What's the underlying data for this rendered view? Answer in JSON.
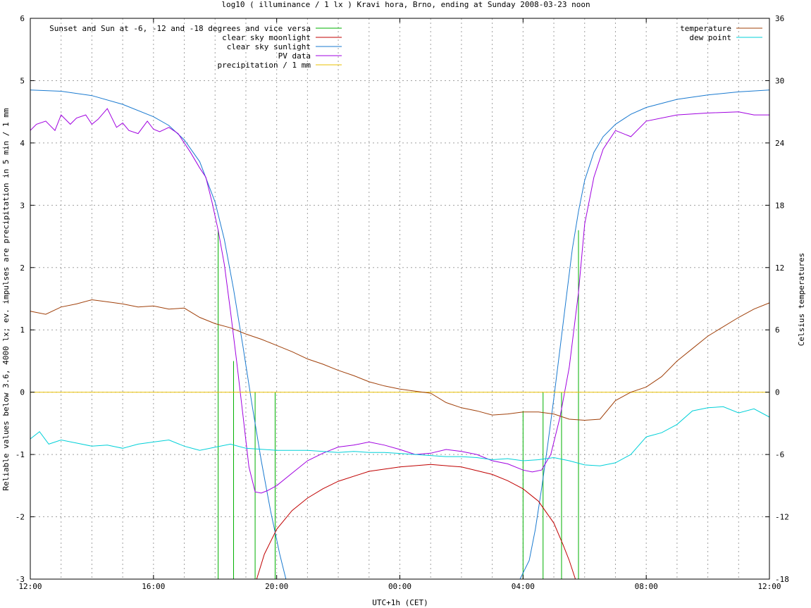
{
  "chart_data": {
    "type": "line",
    "title": "log10 ( illuminance / 1 lx ) Kravi hora, Brno, ending at Sunday 2008-03-23 noon",
    "xlabel": "UTC+1h (CET)",
    "ylabel": "Reliable values below 3.6, 4000 lx; ev. impulses are precipitation in 5 min / 1 mm",
    "y2label": "Celsius temperatures",
    "x_unit": "hours since 12:00",
    "xlim": [
      0,
      24
    ],
    "ylim": [
      -3,
      6
    ],
    "y2lim": [
      -18,
      36
    ],
    "x_ticks": [
      {
        "x": 0,
        "label": "12:00"
      },
      {
        "x": 4,
        "label": "16:00"
      },
      {
        "x": 8,
        "label": "20:00"
      },
      {
        "x": 12,
        "label": "00:00"
      },
      {
        "x": 16,
        "label": "04:00"
      },
      {
        "x": 20,
        "label": "08:00"
      },
      {
        "x": 24,
        "label": "12:00"
      }
    ],
    "y_ticks": [
      -3,
      -2,
      -1,
      0,
      1,
      2,
      3,
      4,
      5,
      6
    ],
    "y2_ticks": [
      -18,
      -12,
      -6,
      0,
      6,
      12,
      18,
      24,
      30,
      36
    ],
    "grid": true,
    "legend_left": {
      "placement": "top-left",
      "entries": [
        {
          "label": "Sunset and Sun at -6, -12 and -18 degrees and vice versa",
          "color": "#00b000"
        },
        {
          "label": "clear sky moonlight",
          "color": "#c00000"
        },
        {
          "label": "clear sky sunlight",
          "color": "#1a7ad0"
        },
        {
          "label": "PV data",
          "color": "#a000e0"
        },
        {
          "label": "precipitation / 1 mm",
          "color": "#e8c000"
        }
      ]
    },
    "legend_right": {
      "placement": "top-right",
      "entries": [
        {
          "label": "temperature",
          "color": "#a0400a"
        },
        {
          "label": "dew point",
          "color": "#00d0d8"
        }
      ]
    },
    "sun_events": [
      {
        "x": 6.1,
        "top": 2.6
      },
      {
        "x": 6.6,
        "top": 0.5
      },
      {
        "x": 7.3,
        "top": 0.0
      },
      {
        "x": 7.95,
        "top": 0.0
      },
      {
        "x": 16.0,
        "top": -0.3
      },
      {
        "x": 16.65,
        "top": 0.0
      },
      {
        "x": 17.25,
        "top": 0.0
      },
      {
        "x": 17.8,
        "top": 2.6
      }
    ],
    "series": [
      {
        "name": "clear sky sunlight",
        "color": "#1a7ad0",
        "axis": "y",
        "x": [
          0,
          1,
          2,
          3,
          4,
          4.5,
          5,
          5.5,
          6,
          6.3,
          6.6,
          6.9,
          7.2,
          7.5,
          7.8,
          8.1,
          8.3,
          15.9,
          16.2,
          16.4,
          16.6,
          16.8,
          17.0,
          17.2,
          17.4,
          17.6,
          17.8,
          18.0,
          18.3,
          18.6,
          19,
          19.5,
          20,
          21,
          22,
          23,
          24
        ],
        "y": [
          4.85,
          4.83,
          4.76,
          4.62,
          4.42,
          4.28,
          4.05,
          3.7,
          3.05,
          2.45,
          1.65,
          0.75,
          -0.2,
          -1.1,
          -1.9,
          -2.6,
          -3.0,
          -3.0,
          -2.7,
          -2.2,
          -1.55,
          -0.85,
          -0.1,
          0.7,
          1.5,
          2.3,
          2.9,
          3.4,
          3.85,
          4.1,
          4.3,
          4.46,
          4.57,
          4.7,
          4.77,
          4.82,
          4.85
        ]
      },
      {
        "name": "clear sky moonlight",
        "color": "#c00000",
        "axis": "y",
        "x": [
          7.35,
          7.6,
          8,
          8.5,
          9,
          9.5,
          10,
          11,
          12,
          13,
          14,
          15,
          15.5,
          16,
          16.5,
          17,
          17.3,
          17.5,
          17.7
        ],
        "y": [
          -3.0,
          -2.6,
          -2.2,
          -1.9,
          -1.7,
          -1.55,
          -1.43,
          -1.27,
          -1.2,
          -1.16,
          -1.2,
          -1.32,
          -1.42,
          -1.55,
          -1.75,
          -2.1,
          -2.45,
          -2.7,
          -3.0
        ]
      },
      {
        "name": "PV data",
        "color": "#a000e0",
        "axis": "y",
        "x": [
          0,
          0.2,
          0.5,
          0.8,
          1.0,
          1.3,
          1.5,
          1.8,
          2.0,
          2.2,
          2.5,
          2.8,
          3.0,
          3.2,
          3.5,
          3.8,
          4.0,
          4.2,
          4.5,
          4.8,
          5.0,
          5.2,
          5.5,
          5.7,
          5.9,
          6.1,
          6.3,
          6.5,
          6.7,
          6.9,
          7.1,
          7.3,
          7.5,
          7.7,
          8.0,
          8.5,
          9,
          9.5,
          10,
          10.5,
          11,
          11.5,
          12,
          12.5,
          13,
          13.5,
          14,
          14.5,
          15,
          15.5,
          16,
          16.3,
          16.6,
          16.9,
          17.2,
          17.5,
          17.8,
          18.0,
          18.3,
          18.6,
          19.0,
          19.5,
          20,
          21,
          22,
          23,
          23.5,
          24
        ],
        "y": [
          4.2,
          4.3,
          4.35,
          4.2,
          4.45,
          4.3,
          4.4,
          4.45,
          4.3,
          4.38,
          4.55,
          4.25,
          4.32,
          4.2,
          4.15,
          4.35,
          4.22,
          4.18,
          4.25,
          4.15,
          4.0,
          3.85,
          3.6,
          3.45,
          3.05,
          2.6,
          2.05,
          1.3,
          0.5,
          -0.35,
          -1.2,
          -1.6,
          -1.62,
          -1.58,
          -1.5,
          -1.3,
          -1.1,
          -0.98,
          -0.88,
          -0.85,
          -0.8,
          -0.85,
          -0.92,
          -1.0,
          -0.98,
          -0.92,
          -0.95,
          -1.0,
          -1.1,
          -1.15,
          -1.25,
          -1.28,
          -1.25,
          -1.0,
          -0.4,
          0.4,
          1.6,
          2.7,
          3.45,
          3.9,
          4.2,
          4.1,
          4.35,
          4.45,
          4.48,
          4.5,
          4.45,
          4.45
        ]
      },
      {
        "name": "precipitation / 1 mm",
        "color": "#e8c000",
        "axis": "y",
        "x": [
          0,
          24
        ],
        "y": [
          0,
          0
        ]
      },
      {
        "name": "temperature",
        "color": "#a0400a",
        "axis": "y2",
        "x": [
          0,
          0.5,
          1,
          1.5,
          2,
          2.5,
          3,
          3.5,
          4,
          4.5,
          5,
          5.5,
          6,
          6.5,
          7,
          7.5,
          8,
          8.5,
          9,
          9.5,
          10,
          10.5,
          11,
          11.5,
          12,
          12.5,
          13,
          13.5,
          14,
          14.5,
          15,
          15.5,
          16,
          16.5,
          17,
          17.5,
          18,
          18.5,
          19,
          19.5,
          20,
          20.5,
          21,
          21.5,
          22,
          22.5,
          23,
          23.5,
          24
        ],
        "y": [
          7.8,
          7.5,
          8.2,
          8.5,
          8.9,
          8.7,
          8.5,
          8.2,
          8.3,
          8.0,
          8.1,
          7.2,
          6.6,
          6.2,
          5.6,
          5.1,
          4.5,
          3.9,
          3.2,
          2.7,
          2.1,
          1.6,
          1.0,
          0.6,
          0.3,
          0.1,
          -0.1,
          -1.0,
          -1.5,
          -1.8,
          -2.2,
          -2.1,
          -1.9,
          -1.9,
          -2.1,
          -2.6,
          -2.7,
          -2.6,
          -0.8,
          0.0,
          0.5,
          1.5,
          3.0,
          4.2,
          5.4,
          6.3,
          7.2,
          8.0,
          8.6
        ]
      },
      {
        "name": "dew point",
        "color": "#00d0d8",
        "axis": "y2",
        "x": [
          0,
          0.3,
          0.6,
          1,
          1.5,
          2,
          2.5,
          3,
          3.5,
          4,
          4.5,
          5,
          5.5,
          6,
          6.5,
          7,
          7.5,
          8,
          8.5,
          9,
          9.5,
          10,
          10.5,
          11,
          11.5,
          12,
          12.5,
          13,
          13.5,
          14,
          14.5,
          15,
          15.5,
          16,
          16.5,
          17,
          17.5,
          18,
          18.5,
          19,
          19.5,
          20,
          20.5,
          21,
          21.5,
          22,
          22.5,
          23,
          23.5,
          24
        ],
        "y": [
          -4.5,
          -3.8,
          -5.0,
          -4.6,
          -4.9,
          -5.2,
          -5.1,
          -5.4,
          -5.0,
          -4.8,
          -4.6,
          -5.2,
          -5.6,
          -5.3,
          -5.0,
          -5.4,
          -5.5,
          -5.6,
          -5.6,
          -5.6,
          -5.7,
          -5.8,
          -5.7,
          -5.8,
          -5.8,
          -5.9,
          -6.0,
          -6.1,
          -6.2,
          -6.2,
          -6.3,
          -6.5,
          -6.4,
          -6.6,
          -6.5,
          -6.3,
          -6.6,
          -7.0,
          -7.1,
          -6.8,
          -6.0,
          -4.3,
          -3.9,
          -3.1,
          -1.8,
          -1.5,
          -1.4,
          -2.0,
          -1.6,
          -2.4
        ]
      }
    ]
  }
}
